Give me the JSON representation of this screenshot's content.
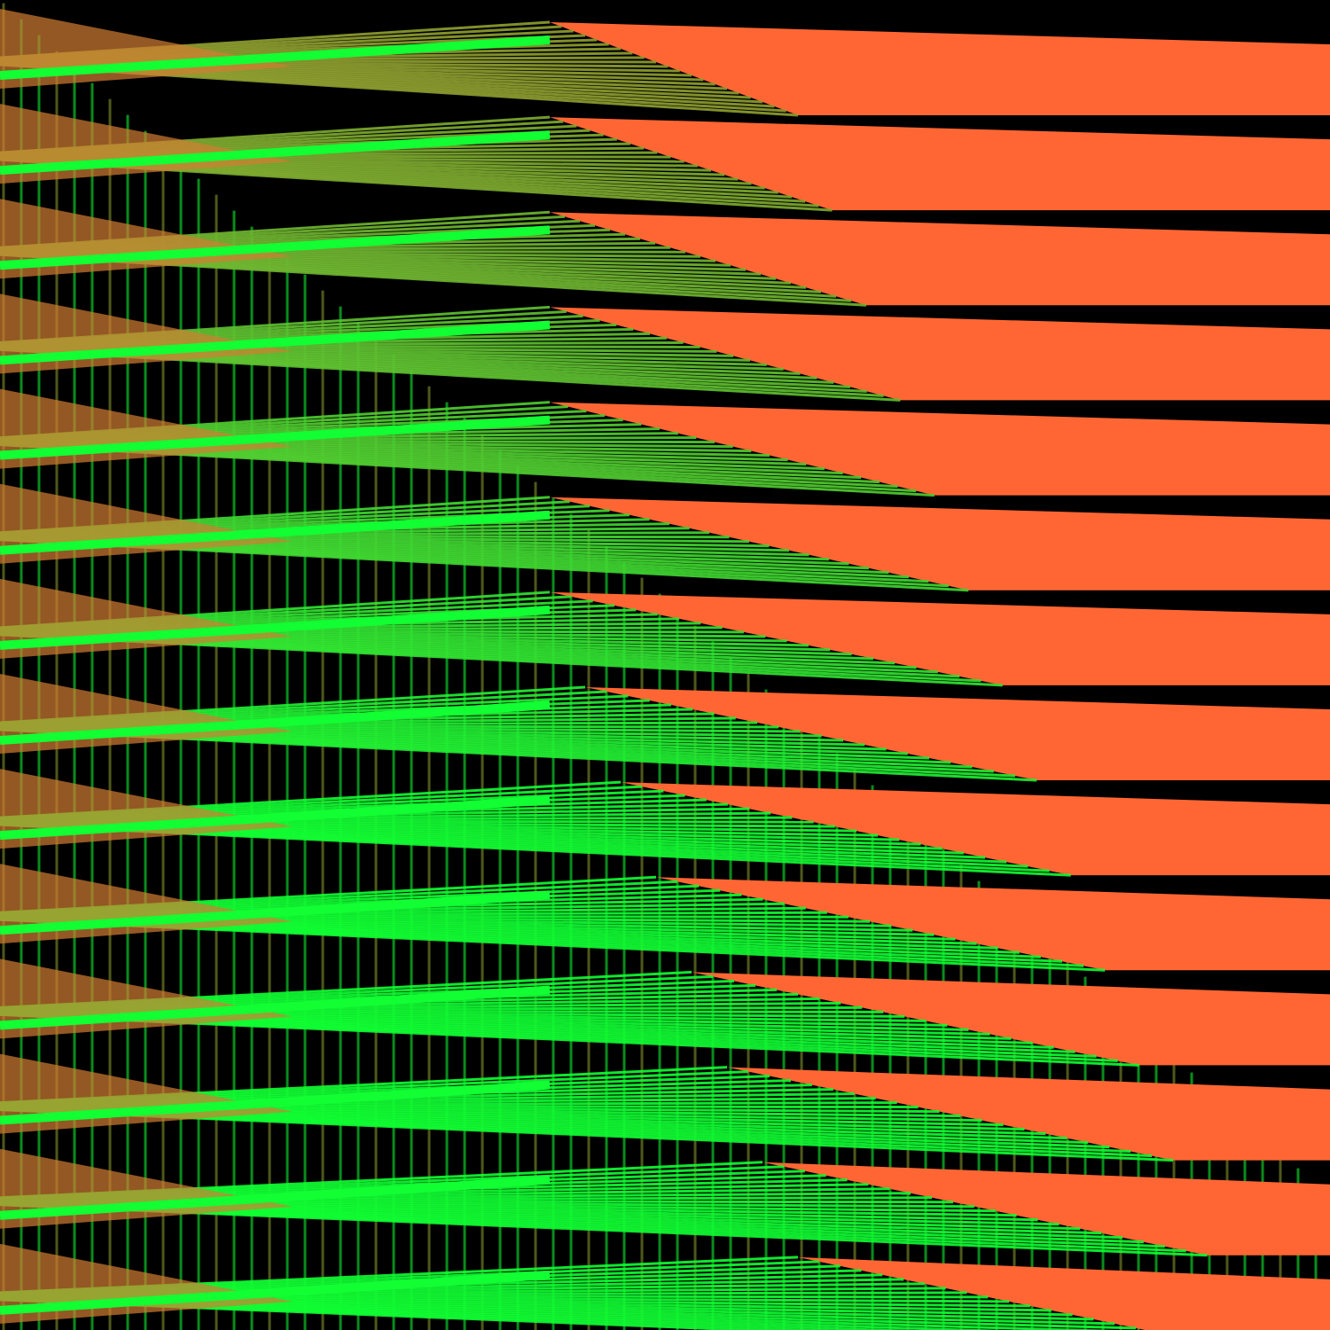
{
  "artwork": {
    "colors": {
      "background": "#000000",
      "orange": "#FF6633",
      "green": "#11FF33",
      "olive": "#8FA030"
    },
    "band_count": 14
  }
}
